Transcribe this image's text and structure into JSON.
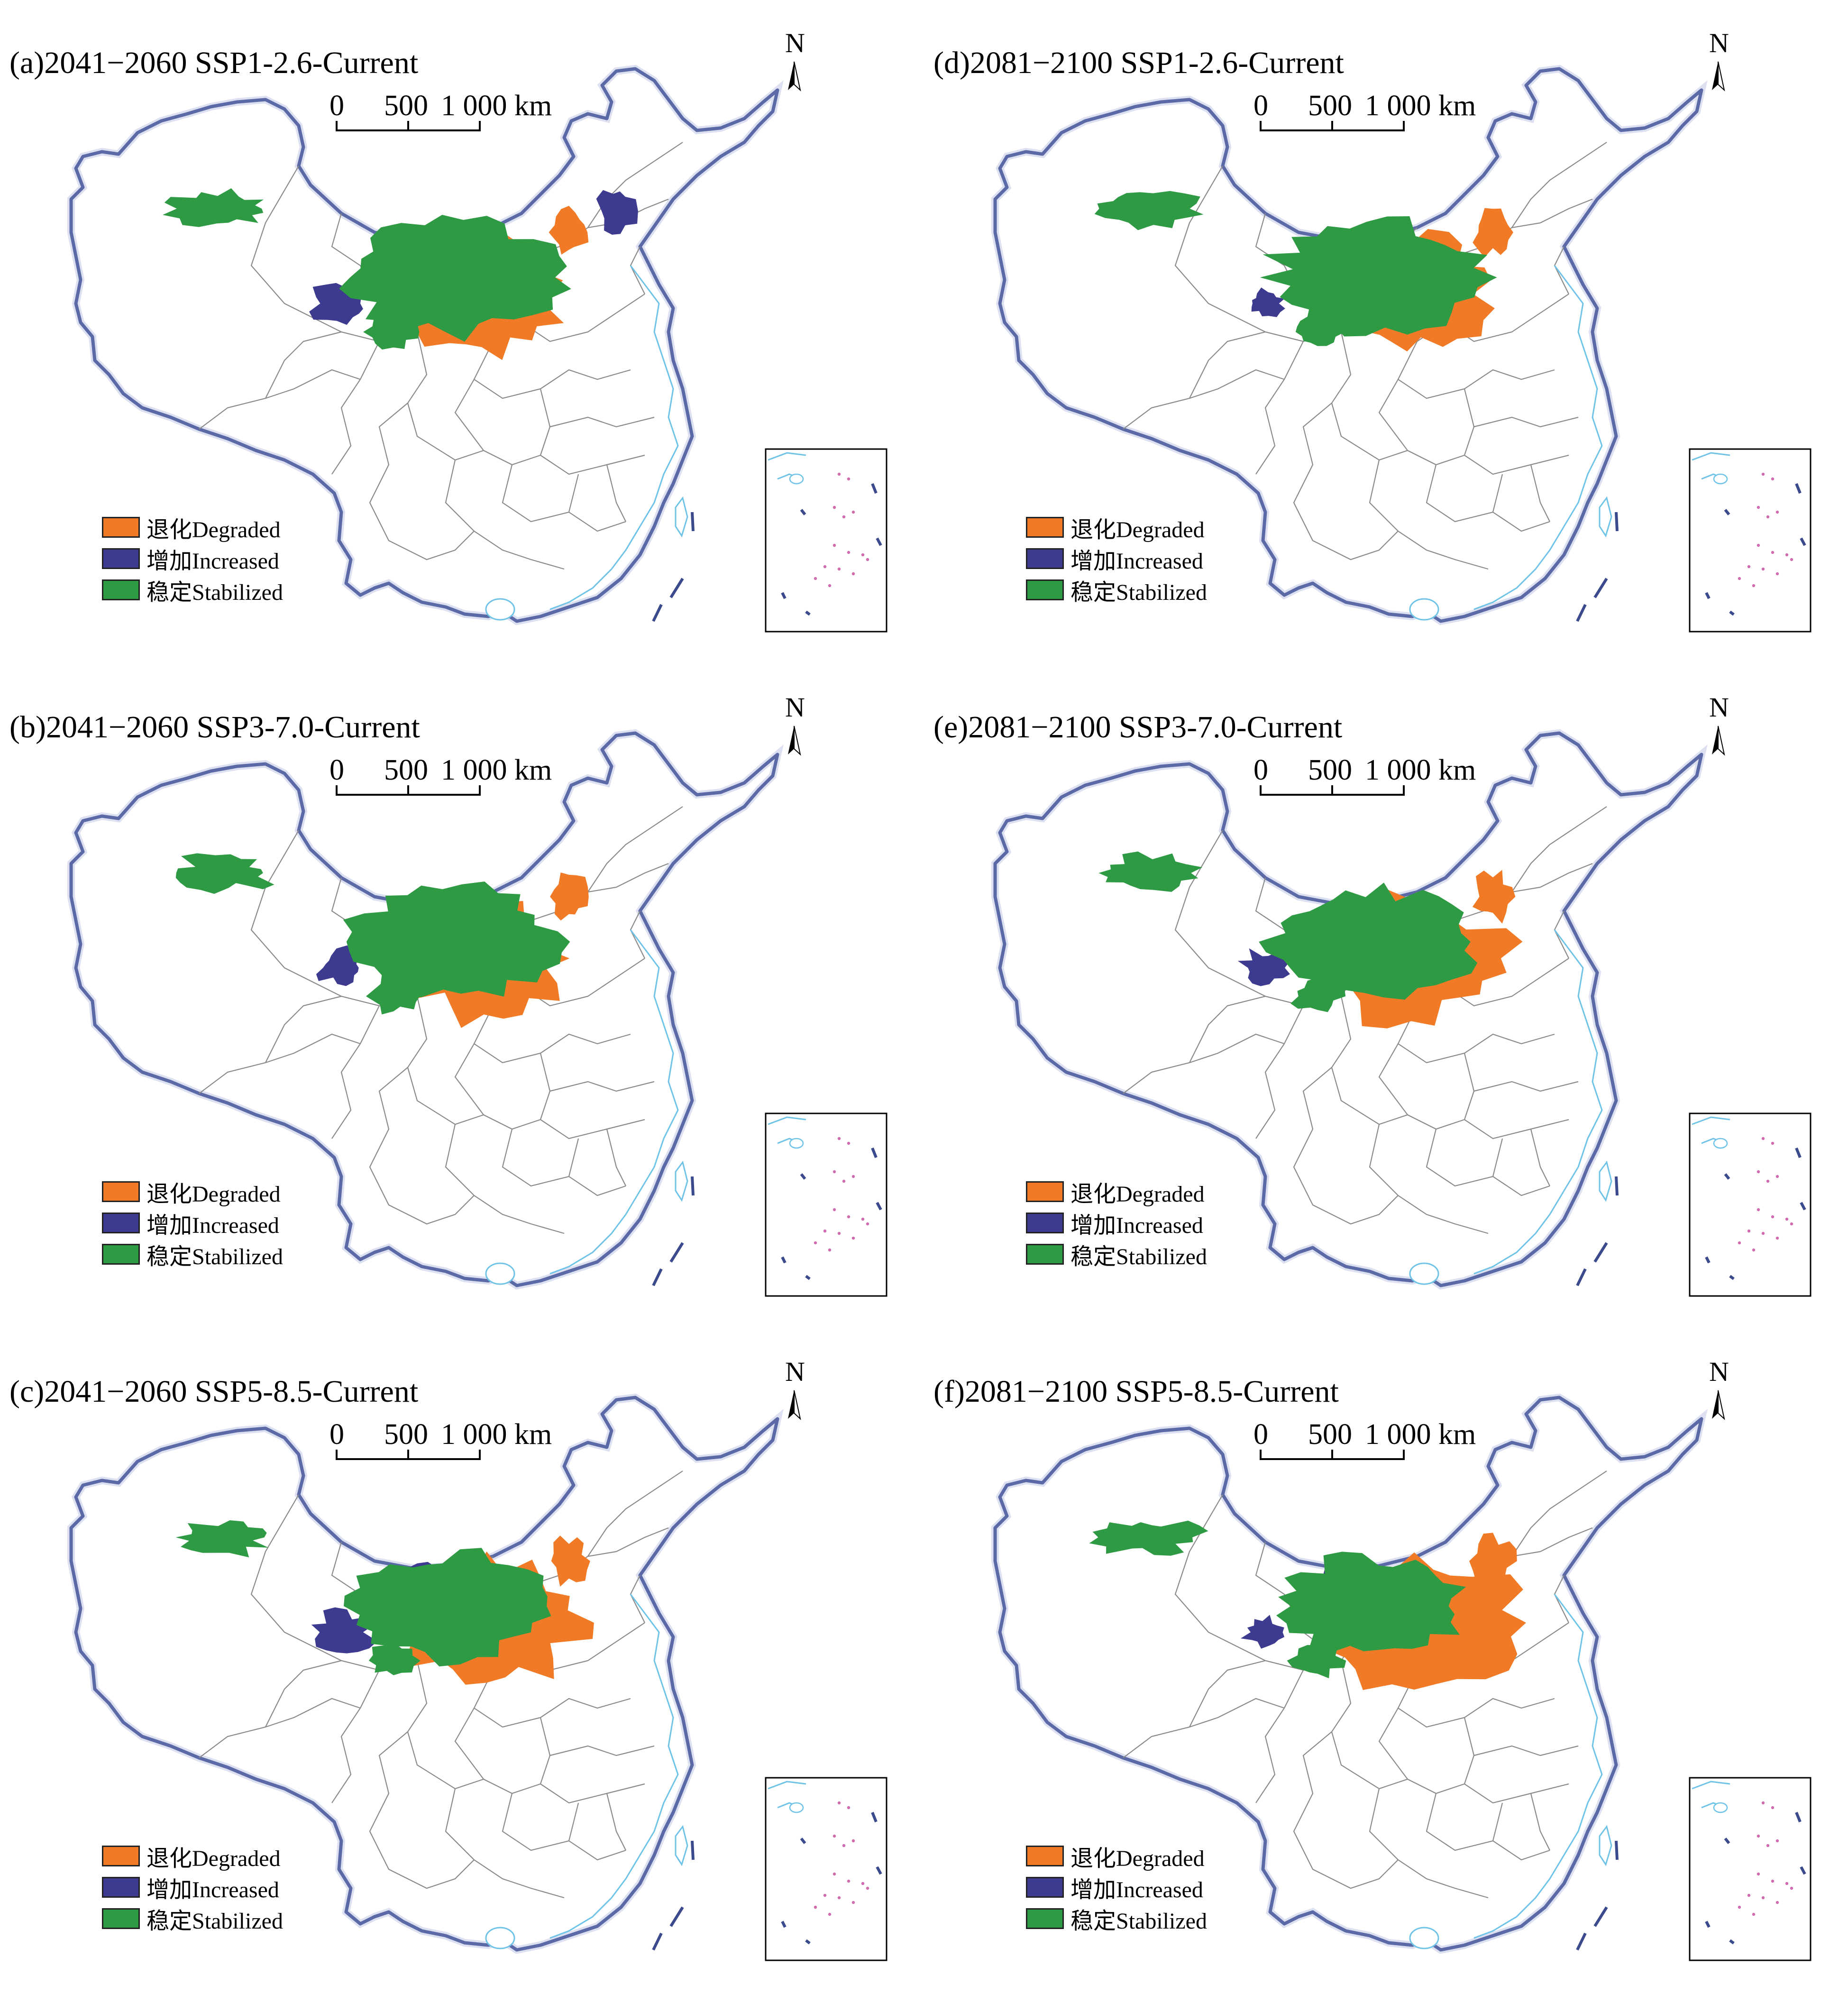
{
  "colors": {
    "degraded": "#f07a26",
    "increased": "#3d3b90",
    "stabilized": "#2e9a43",
    "border_outline": "#3a4a8c",
    "province_lines": "#8a8a8a",
    "coast": "#6ec3e6",
    "inset_islands": "#d06bb0"
  },
  "north_arrow": "N",
  "scale_bar": {
    "tick_labels": [
      "0",
      "500",
      "1 000 km"
    ]
  },
  "legend": [
    {
      "key": "degraded",
      "label": "退化Degraded"
    },
    {
      "key": "increased",
      "label": "增加Increased"
    },
    {
      "key": "stabilized",
      "label": "稳定Stabilized"
    }
  ],
  "panels": [
    {
      "id": "a",
      "title": "(a)2041−2060 SSP1-2.6-Current",
      "degraded_level": 0.2,
      "increased_level": 0.55
    },
    {
      "id": "b",
      "title": "(b)2041−2060 SSP3-7.0-Current",
      "degraded_level": 0.35,
      "increased_level": 0.45
    },
    {
      "id": "c",
      "title": "(c)2041−2060 SSP5-8.5-Current",
      "degraded_level": 0.55,
      "increased_level": 0.6
    },
    {
      "id": "d",
      "title": "(d)2081−2100 SSP1-2.6-Current",
      "degraded_level": 0.3,
      "increased_level": 0.25
    },
    {
      "id": "e",
      "title": "(e)2081−2100 SSP3-7.0-Current",
      "degraded_level": 0.6,
      "increased_level": 0.45
    },
    {
      "id": "f",
      "title": "(f)2081−2100 SSP5-8.5-Current",
      "degraded_level": 0.8,
      "increased_level": 0.35
    }
  ]
}
